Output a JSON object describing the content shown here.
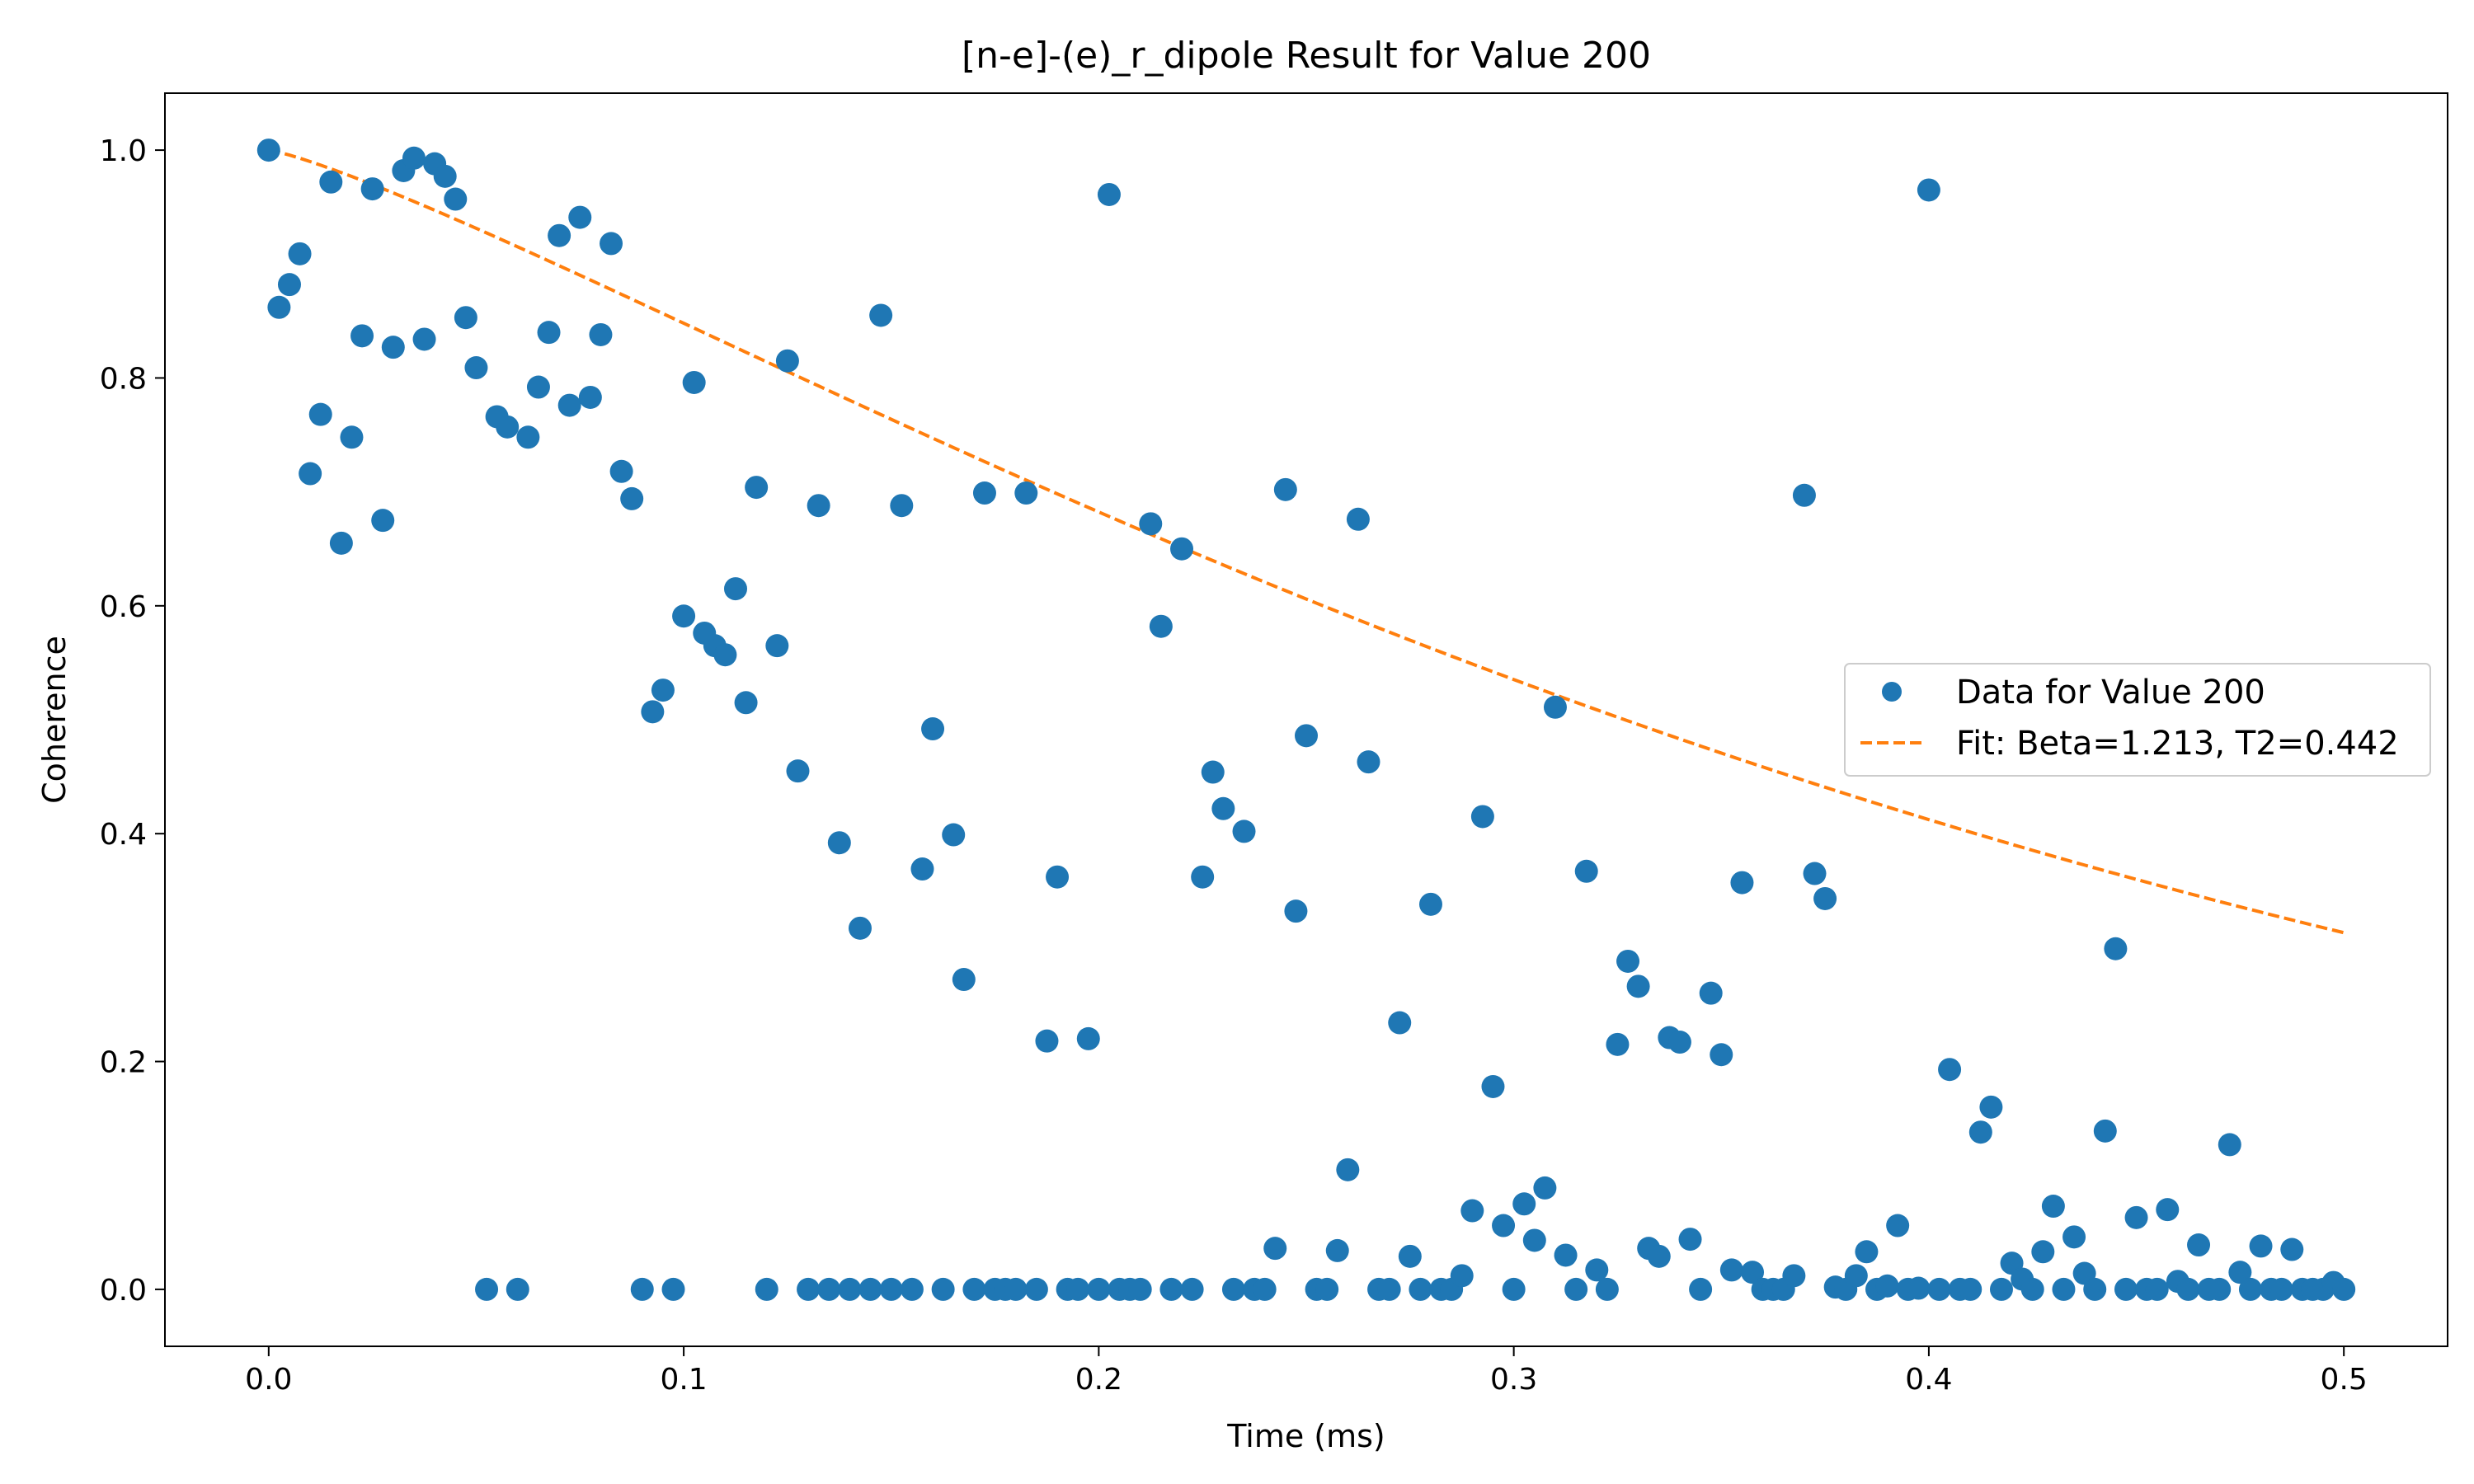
{
  "chart_data": {
    "type": "scatter",
    "title": "[n-e]-(e)_r_dipole Result for Value 200",
    "xlabel": "Time (ms)",
    "ylabel": "Coherence",
    "xlim": [
      -0.025,
      0.525
    ],
    "ylim": [
      -0.05,
      1.05
    ],
    "xticks": [
      0.0,
      0.1,
      0.2,
      0.3,
      0.4,
      0.5
    ],
    "xtick_labels": [
      "0.0",
      "0.1",
      "0.2",
      "0.3",
      "0.4",
      "0.5"
    ],
    "yticks": [
      0.0,
      0.2,
      0.4,
      0.6,
      0.8,
      1.0
    ],
    "ytick_labels": [
      "0.0",
      "0.2",
      "0.4",
      "0.6",
      "0.8",
      "1.0"
    ],
    "grid": false,
    "legend_position": "center-right",
    "series": [
      {
        "name": "Data for Value 200",
        "kind": "scatter",
        "color": "#1f77b4",
        "points": [
          [
            0.0,
            1.0
          ],
          [
            0.0025,
            0.862
          ],
          [
            0.005,
            0.882
          ],
          [
            0.0075,
            0.909
          ],
          [
            0.01,
            0.716
          ],
          [
            0.0125,
            0.768
          ],
          [
            0.015,
            0.972
          ],
          [
            0.0175,
            0.655
          ],
          [
            0.02,
            0.748
          ],
          [
            0.0225,
            0.837
          ],
          [
            0.025,
            0.966
          ],
          [
            0.0275,
            0.675
          ],
          [
            0.03,
            0.827
          ],
          [
            0.0325,
            0.982
          ],
          [
            0.035,
            0.993
          ],
          [
            0.0375,
            0.834
          ],
          [
            0.04,
            0.988
          ],
          [
            0.0425,
            0.977
          ],
          [
            0.045,
            0.957
          ],
          [
            0.0475,
            0.853
          ],
          [
            0.05,
            0.809
          ],
          [
            0.0525,
            0.0
          ],
          [
            0.055,
            0.766
          ],
          [
            0.0575,
            0.757
          ],
          [
            0.06,
            0.0
          ],
          [
            0.0625,
            0.748
          ],
          [
            0.065,
            0.792
          ],
          [
            0.0675,
            0.84
          ],
          [
            0.07,
            0.925
          ],
          [
            0.0725,
            0.776
          ],
          [
            0.075,
            0.941
          ],
          [
            0.0775,
            0.783
          ],
          [
            0.08,
            0.838
          ],
          [
            0.0825,
            0.918
          ],
          [
            0.085,
            0.718
          ],
          [
            0.0875,
            0.694
          ],
          [
            0.09,
            0.0
          ],
          [
            0.0925,
            0.507
          ],
          [
            0.095,
            0.526
          ],
          [
            0.0975,
            0.0
          ],
          [
            0.1,
            0.591
          ],
          [
            0.1025,
            0.796
          ],
          [
            0.105,
            0.576
          ],
          [
            0.1075,
            0.565
          ],
          [
            0.11,
            0.557
          ],
          [
            0.1125,
            0.615
          ],
          [
            0.115,
            0.515
          ],
          [
            0.1175,
            0.704
          ],
          [
            0.12,
            0.0
          ],
          [
            0.1225,
            0.565
          ],
          [
            0.125,
            0.815
          ],
          [
            0.1275,
            0.455
          ],
          [
            0.13,
            0.0
          ],
          [
            0.1325,
            0.688
          ],
          [
            0.135,
            0.0
          ],
          [
            0.1375,
            0.392
          ],
          [
            0.14,
            0.0
          ],
          [
            0.1425,
            0.317
          ],
          [
            0.145,
            0.0
          ],
          [
            0.1475,
            0.855
          ],
          [
            0.15,
            0.0
          ],
          [
            0.1525,
            0.688
          ],
          [
            0.155,
            0.0
          ],
          [
            0.1575,
            0.369
          ],
          [
            0.16,
            0.492
          ],
          [
            0.1625,
            0.0
          ],
          [
            0.165,
            0.399
          ],
          [
            0.1675,
            0.272
          ],
          [
            0.17,
            0.0
          ],
          [
            0.1725,
            0.699
          ],
          [
            0.175,
            0.0
          ],
          [
            0.1775,
            0.0
          ],
          [
            0.18,
            0.0
          ],
          [
            0.1825,
            0.699
          ],
          [
            0.185,
            0.0
          ],
          [
            0.1875,
            0.218
          ],
          [
            0.19,
            0.362
          ],
          [
            0.1925,
            0.0
          ],
          [
            0.195,
            0.0
          ],
          [
            0.1975,
            0.22
          ],
          [
            0.2,
            0.0
          ],
          [
            0.2025,
            0.961
          ],
          [
            0.205,
            0.0
          ],
          [
            0.2075,
            0.0
          ],
          [
            0.21,
            0.0
          ],
          [
            0.2125,
            0.672
          ],
          [
            0.215,
            0.582
          ],
          [
            0.2175,
            0.0
          ],
          [
            0.22,
            0.65
          ],
          [
            0.2225,
            0.0
          ],
          [
            0.225,
            0.362
          ],
          [
            0.2275,
            0.454
          ],
          [
            0.23,
            0.422
          ],
          [
            0.2325,
            0.0
          ],
          [
            0.235,
            0.402
          ],
          [
            0.2375,
            0.0
          ],
          [
            0.24,
            0.0
          ],
          [
            0.2425,
            0.036
          ],
          [
            0.245,
            0.702
          ],
          [
            0.2475,
            0.332
          ],
          [
            0.25,
            0.486
          ],
          [
            0.2525,
            0.0
          ],
          [
            0.255,
            0.0
          ],
          [
            0.2575,
            0.034
          ],
          [
            0.26,
            0.105
          ],
          [
            0.2625,
            0.676
          ],
          [
            0.265,
            0.463
          ],
          [
            0.2675,
            0.0
          ],
          [
            0.27,
            0.0
          ],
          [
            0.2725,
            0.234
          ],
          [
            0.275,
            0.029
          ],
          [
            0.2775,
            0.0
          ],
          [
            0.28,
            0.338
          ],
          [
            0.2825,
            0.0
          ],
          [
            0.285,
            0.0
          ],
          [
            0.2875,
            0.012
          ],
          [
            0.29,
            0.069
          ],
          [
            0.2925,
            0.415
          ],
          [
            0.295,
            0.178
          ],
          [
            0.2975,
            0.056
          ],
          [
            0.3,
            0.0
          ],
          [
            0.3025,
            0.075
          ],
          [
            0.305,
            0.043
          ],
          [
            0.3075,
            0.089
          ],
          [
            0.31,
            0.511
          ],
          [
            0.3125,
            0.03
          ],
          [
            0.315,
            0.0
          ],
          [
            0.3175,
            0.367
          ],
          [
            0.32,
            0.017
          ],
          [
            0.3225,
            0.0
          ],
          [
            0.325,
            0.215
          ],
          [
            0.3275,
            0.288
          ],
          [
            0.33,
            0.266
          ],
          [
            0.3325,
            0.036
          ],
          [
            0.335,
            0.029
          ],
          [
            0.3375,
            0.221
          ],
          [
            0.34,
            0.217
          ],
          [
            0.3425,
            0.044
          ],
          [
            0.345,
            0.0
          ],
          [
            0.3475,
            0.26
          ],
          [
            0.35,
            0.206
          ],
          [
            0.3525,
            0.017
          ],
          [
            0.355,
            0.357
          ],
          [
            0.3575,
            0.015
          ],
          [
            0.36,
            0.0
          ],
          [
            0.3625,
            0.0
          ],
          [
            0.365,
            0.0
          ],
          [
            0.3675,
            0.012
          ],
          [
            0.37,
            0.697
          ],
          [
            0.3725,
            0.365
          ],
          [
            0.375,
            0.343
          ],
          [
            0.3775,
            0.002
          ],
          [
            0.38,
            0.0
          ],
          [
            0.3825,
            0.012
          ],
          [
            0.385,
            0.033
          ],
          [
            0.3875,
            0.0
          ],
          [
            0.39,
            0.003
          ],
          [
            0.3925,
            0.056
          ],
          [
            0.395,
            0.0
          ],
          [
            0.3975,
            0.001
          ],
          [
            0.4,
            0.965
          ],
          [
            0.4025,
            0.0
          ],
          [
            0.405,
            0.193
          ],
          [
            0.4075,
            0.0
          ],
          [
            0.41,
            0.0
          ],
          [
            0.4125,
            0.138
          ],
          [
            0.415,
            0.16
          ],
          [
            0.4175,
            0.0
          ],
          [
            0.42,
            0.023
          ],
          [
            0.4225,
            0.009
          ],
          [
            0.425,
            0.0
          ],
          [
            0.4275,
            0.033
          ],
          [
            0.43,
            0.073
          ],
          [
            0.4325,
            0.0
          ],
          [
            0.435,
            0.046
          ],
          [
            0.4375,
            0.014
          ],
          [
            0.44,
            0.0
          ],
          [
            0.4425,
            0.139
          ],
          [
            0.445,
            0.299
          ],
          [
            0.4475,
            0.0
          ],
          [
            0.45,
            0.063
          ],
          [
            0.4525,
            0.0
          ],
          [
            0.455,
            0.0
          ],
          [
            0.4575,
            0.07
          ],
          [
            0.46,
            0.007
          ],
          [
            0.4625,
            0.0
          ],
          [
            0.465,
            0.039
          ],
          [
            0.4675,
            0.0
          ],
          [
            0.47,
            0.0
          ],
          [
            0.4725,
            0.127
          ],
          [
            0.475,
            0.015
          ],
          [
            0.4775,
            0.0
          ],
          [
            0.48,
            0.038
          ],
          [
            0.4825,
            0.0
          ],
          [
            0.485,
            0.0
          ],
          [
            0.4875,
            0.035
          ],
          [
            0.49,
            0.0
          ],
          [
            0.4925,
            0.0
          ],
          [
            0.495,
            0.0
          ],
          [
            0.4975,
            0.006
          ],
          [
            0.5,
            0.0
          ]
        ]
      },
      {
        "name": "Fit: Beta=1.213, T2=0.442",
        "kind": "line",
        "style": "dashed",
        "color": "#ff7f0e",
        "beta": 1.213,
        "t2": 0.442,
        "x_range": [
          0.0,
          0.5
        ]
      }
    ]
  }
}
